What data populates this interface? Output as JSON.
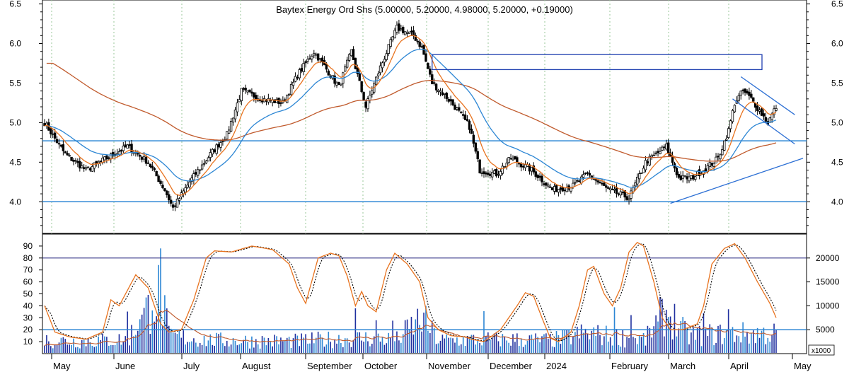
{
  "chart_data": [
    {
      "type": "candlestick",
      "title": "Baytex Energy Ord Shs (5.00000, 5.20000, 4.98000, 5.20000, +0.19000)",
      "y_ticks": [
        4.0,
        4.5,
        5.0,
        5.5,
        6.0,
        6.5
      ],
      "y_tick_labels": [
        "4.0",
        "4.5",
        "5.0",
        "5.5",
        "6.0",
        "6.5"
      ],
      "ylim": [
        3.6,
        6.55
      ],
      "x_ticks": [
        "May",
        "June",
        "July",
        "August",
        "September",
        "October",
        "November",
        "December",
        "2024",
        "February",
        "March",
        "April",
        "May"
      ],
      "close_anchors": [
        [
          0,
          5.0
        ],
        [
          10,
          4.6
        ],
        [
          20,
          4.4
        ],
        [
          30,
          4.55
        ],
        [
          40,
          4.7
        ],
        [
          50,
          4.5
        ],
        [
          58,
          4.15
        ],
        [
          62,
          3.92
        ],
        [
          70,
          4.25
        ],
        [
          80,
          4.6
        ],
        [
          88,
          4.85
        ],
        [
          95,
          5.4
        ],
        [
          105,
          5.3
        ],
        [
          115,
          5.25
        ],
        [
          122,
          5.6
        ],
        [
          130,
          5.9
        ],
        [
          138,
          5.6
        ],
        [
          142,
          5.45
        ],
        [
          148,
          5.9
        ],
        [
          155,
          5.2
        ],
        [
          162,
          5.7
        ],
        [
          170,
          6.2
        ],
        [
          178,
          6.1
        ],
        [
          182,
          5.95
        ],
        [
          187,
          5.5
        ],
        [
          193,
          5.35
        ],
        [
          198,
          5.2
        ],
        [
          205,
          4.95
        ],
        [
          210,
          4.4
        ],
        [
          218,
          4.35
        ],
        [
          225,
          4.55
        ],
        [
          235,
          4.4
        ],
        [
          245,
          4.15
        ],
        [
          255,
          4.2
        ],
        [
          262,
          4.35
        ],
        [
          272,
          4.15
        ],
        [
          282,
          4.05
        ],
        [
          290,
          4.5
        ],
        [
          300,
          4.7
        ],
        [
          306,
          4.3
        ],
        [
          312,
          4.3
        ],
        [
          318,
          4.4
        ],
        [
          325,
          4.55
        ],
        [
          330,
          4.9
        ],
        [
          333,
          5.25
        ],
        [
          337,
          5.4
        ],
        [
          341,
          5.3
        ],
        [
          345,
          5.15
        ],
        [
          349,
          5.0
        ],
        [
          353,
          5.2
        ]
      ],
      "horizontal_lines": [
        4.77,
        4.0
      ],
      "resistance_box": {
        "y_low": 5.67,
        "y_high": 5.86
      },
      "trendlines": [
        {
          "from": [
            336,
            5.58
          ],
          "to": [
            362,
            5.1
          ]
        },
        {
          "from": [
            332,
            5.3
          ],
          "to": [
            362,
            4.73
          ]
        },
        {
          "from": [
            302,
            3.98
          ],
          "to": [
            366,
            4.55
          ]
        }
      ],
      "moving_averages": [
        "ma-short",
        "ma-mid",
        "ma-long"
      ],
      "colors": {
        "candle": "#000000",
        "ma_short": "#E8731F",
        "ma_mid": "#2C86D4",
        "ma_long": "#C05A2C",
        "hline": "#2C86D4",
        "box": "#1F3FB0",
        "trend": "#2C6FD4"
      }
    },
    {
      "type": "oscillator_volume",
      "y_ticks_left": [
        10,
        20,
        30,
        40,
        50,
        60,
        70,
        80,
        90
      ],
      "y_tick_labels_left": [
        "10",
        "20",
        "30",
        "40",
        "50",
        "60",
        "70",
        "80",
        "90"
      ],
      "y_ticks_right": [
        5000,
        10000,
        15000,
        20000
      ],
      "y_tick_labels_right": [
        "5000",
        "10000",
        "15000",
        "20000"
      ],
      "right_axis_unit": "x1000",
      "ylim_left": [
        0,
        100
      ],
      "ylim_right": [
        0,
        25000
      ],
      "reference_lines": [
        80,
        20
      ],
      "stoch_anchors": [
        [
          0,
          40
        ],
        [
          5,
          18
        ],
        [
          12,
          14
        ],
        [
          20,
          12
        ],
        [
          28,
          18
        ],
        [
          32,
          45
        ],
        [
          36,
          40
        ],
        [
          44,
          66
        ],
        [
          50,
          55
        ],
        [
          56,
          25
        ],
        [
          60,
          18
        ],
        [
          66,
          20
        ],
        [
          72,
          45
        ],
        [
          78,
          80
        ],
        [
          82,
          86
        ],
        [
          90,
          85
        ],
        [
          100,
          90
        ],
        [
          110,
          87
        ],
        [
          118,
          75
        ],
        [
          122,
          55
        ],
        [
          126,
          42
        ],
        [
          132,
          80
        ],
        [
          138,
          84
        ],
        [
          142,
          82
        ],
        [
          146,
          65
        ],
        [
          150,
          40
        ],
        [
          153,
          52
        ],
        [
          156,
          40
        ],
        [
          160,
          35
        ],
        [
          165,
          70
        ],
        [
          169,
          84
        ],
        [
          175,
          75
        ],
        [
          181,
          60
        ],
        [
          185,
          30
        ],
        [
          190,
          20
        ],
        [
          196,
          15
        ],
        [
          203,
          14
        ],
        [
          206,
          12
        ],
        [
          212,
          10
        ],
        [
          220,
          20
        ],
        [
          228,
          40
        ],
        [
          232,
          51
        ],
        [
          236,
          48
        ],
        [
          240,
          30
        ],
        [
          244,
          13
        ],
        [
          248,
          10
        ],
        [
          254,
          18
        ],
        [
          258,
          40
        ],
        [
          262,
          70
        ],
        [
          265,
          73
        ],
        [
          270,
          50
        ],
        [
          274,
          40
        ],
        [
          278,
          55
        ],
        [
          282,
          85
        ],
        [
          286,
          93
        ],
        [
          289,
          90
        ],
        [
          294,
          60
        ],
        [
          298,
          30
        ],
        [
          302,
          20
        ],
        [
          308,
          20
        ],
        [
          315,
          25
        ],
        [
          318,
          40
        ],
        [
          322,
          75
        ],
        [
          328,
          88
        ],
        [
          333,
          92
        ],
        [
          338,
          80
        ],
        [
          344,
          60
        ],
        [
          350,
          42
        ],
        [
          353,
          30
        ]
      ],
      "volume_anchors": [
        [
          0,
          3000
        ],
        [
          20,
          2800
        ],
        [
          40,
          3200
        ],
        [
          56,
          14000
        ],
        [
          60,
          4000
        ],
        [
          80,
          3000
        ],
        [
          120,
          2800
        ],
        [
          150,
          3500
        ],
        [
          170,
          3200
        ],
        [
          182,
          8000
        ],
        [
          190,
          3000
        ],
        [
          220,
          3200
        ],
        [
          245,
          3000
        ],
        [
          260,
          4500
        ],
        [
          290,
          3200
        ],
        [
          300,
          10000
        ],
        [
          310,
          4000
        ],
        [
          330,
          4500
        ],
        [
          353,
          4500
        ]
      ],
      "volume_spike": {
        "index": 56,
        "value": 22000
      },
      "colors": {
        "stoch_k": "#E8731F",
        "stoch_d": "#000000",
        "volume_light": "#2C86D4",
        "volume_dark": "#1F2F9F",
        "ref_80": "#3A3A8A",
        "ref_20": "#2C86D4",
        "vol_ma": "#C05A2C"
      }
    }
  ]
}
